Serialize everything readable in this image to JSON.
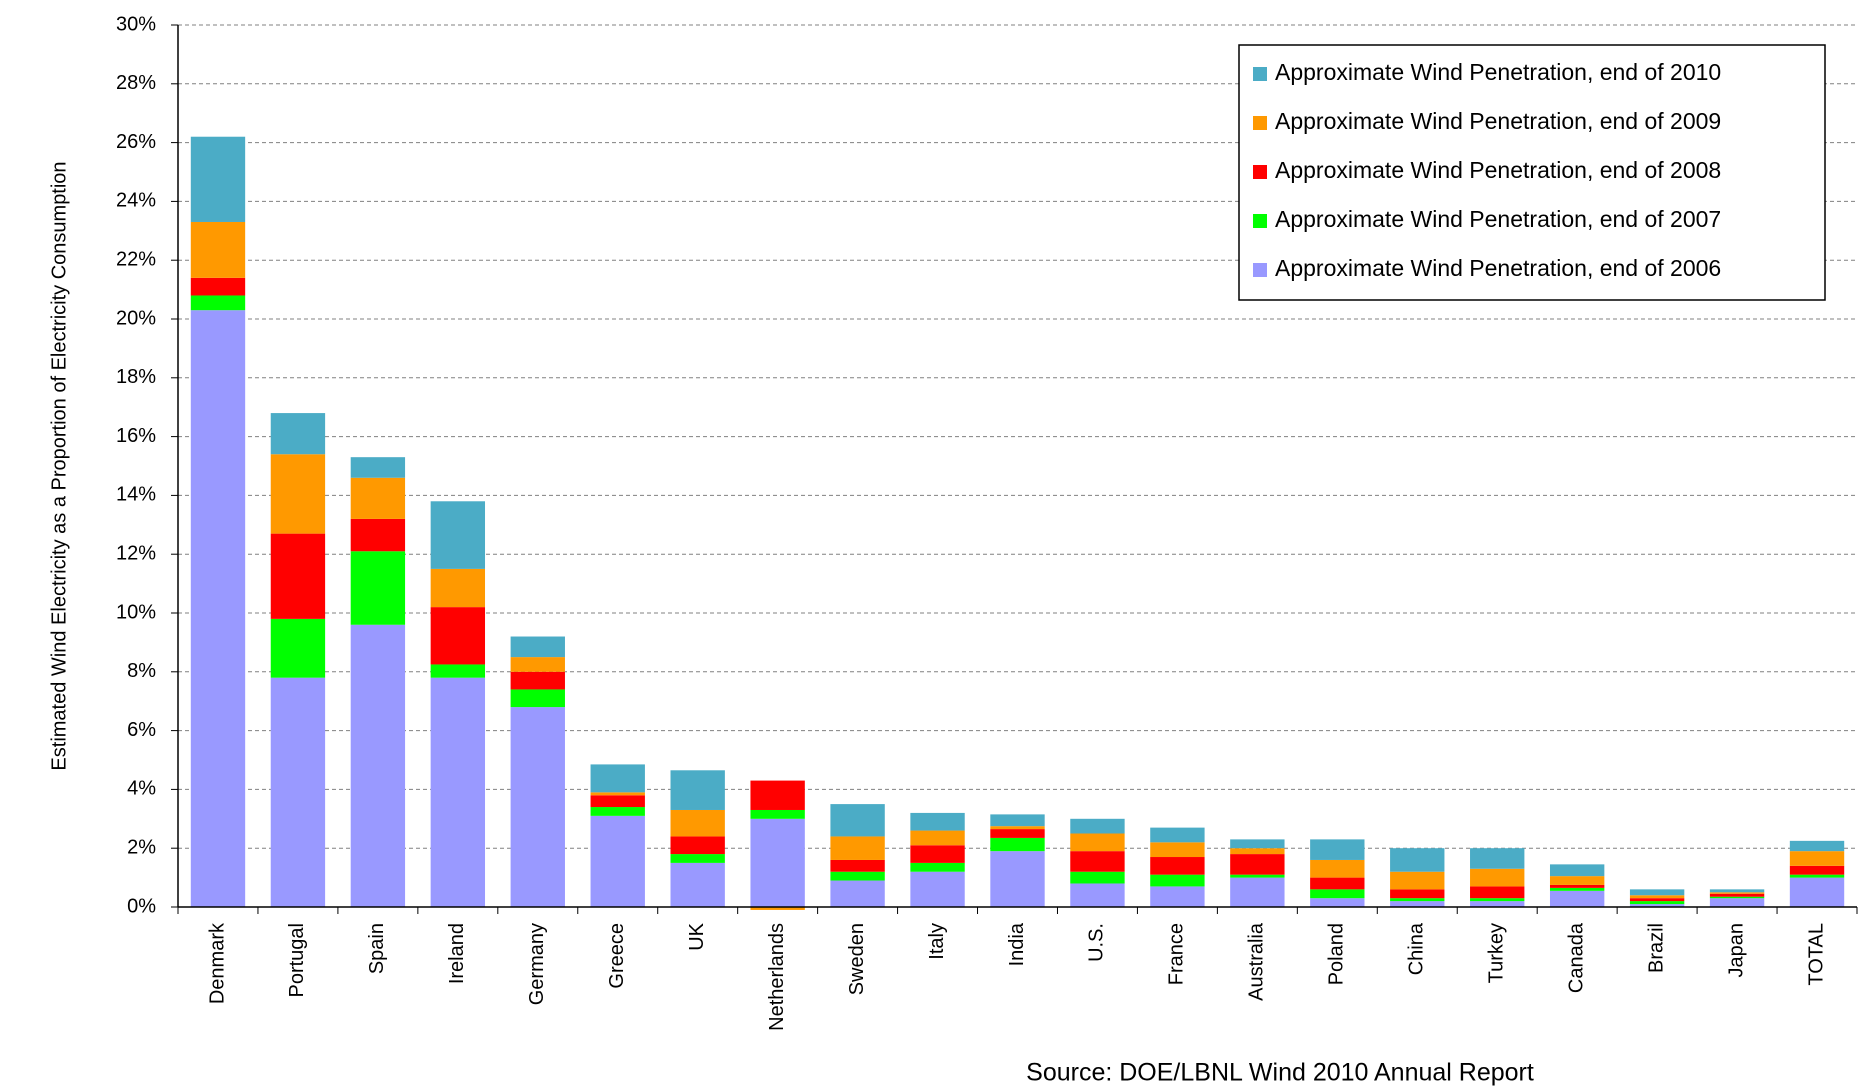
{
  "chart_data": {
    "type": "stacked_bar",
    "y_axis_label": "Estimated Wind Electricity as a Proportion of Electricity Consumption",
    "source": "Source: DOE/LBNL Wind 2010 Annual Report",
    "categories": [
      "Denmark",
      "Portugal",
      "Spain",
      "Ireland",
      "Germany",
      "Greece",
      "UK",
      "Netherlands",
      "Sweden",
      "Italy",
      "India",
      "U.S.",
      "France",
      "Australia",
      "Poland",
      "China",
      "Turkey",
      "Canada",
      "Brazil",
      "Japan",
      "TOTAL"
    ],
    "series": [
      {
        "name": "Approximate Wind Penetration, end of 2006",
        "color": "#9999ff",
        "values": [
          20.3,
          7.8,
          9.6,
          7.8,
          6.8,
          3.1,
          1.5,
          3.0,
          0.9,
          1.2,
          1.9,
          0.8,
          0.7,
          1.0,
          0.3,
          0.2,
          0.2,
          0.55,
          0.1,
          0.3,
          1.0
        ]
      },
      {
        "name": "Approximate Wind Penetration, end of 2007",
        "color": "#00ff00",
        "values": [
          0.5,
          2.0,
          2.5,
          0.45,
          0.6,
          0.3,
          0.3,
          0.3,
          0.3,
          0.3,
          0.45,
          0.4,
          0.4,
          0.1,
          0.3,
          0.1,
          0.1,
          0.1,
          0.1,
          0.05,
          0.1
        ]
      },
      {
        "name": "Approximate Wind Penetration, end of 2008",
        "color": "#ff0000",
        "values": [
          0.6,
          2.9,
          1.1,
          1.95,
          0.6,
          0.4,
          0.6,
          1.0,
          0.4,
          0.6,
          0.3,
          0.7,
          0.6,
          0.7,
          0.4,
          0.3,
          0.4,
          0.1,
          0.1,
          0.1,
          0.3
        ]
      },
      {
        "name": "Approximate Wind Penetration, end of 2009",
        "color": "#ff9900",
        "values": [
          1.9,
          2.7,
          1.4,
          1.3,
          0.5,
          0.1,
          0.9,
          -0.1,
          0.8,
          0.5,
          0.1,
          0.6,
          0.5,
          0.2,
          0.6,
          0.6,
          0.6,
          0.3,
          0.1,
          0.05,
          0.5
        ]
      },
      {
        "name": "Approximate Wind Penetration, end of 2010",
        "color": "#4bacc6",
        "values": [
          2.9,
          1.4,
          0.7,
          2.3,
          0.7,
          0.95,
          1.35,
          0,
          1.1,
          0.6,
          0.4,
          0.5,
          0.5,
          0.3,
          0.7,
          0.8,
          0.7,
          0.4,
          0.2,
          0.1,
          0.35
        ]
      }
    ],
    "ylim": [
      0,
      30
    ],
    "yticks": [
      {
        "value": 0,
        "label": "0%"
      },
      {
        "value": 2,
        "label": "2%"
      },
      {
        "value": 4,
        "label": "4%"
      },
      {
        "value": 6,
        "label": "6%"
      },
      {
        "value": 8,
        "label": "8%"
      },
      {
        "value": 10,
        "label": "10%"
      },
      {
        "value": 12,
        "label": "12%"
      },
      {
        "value": 14,
        "label": "14%"
      },
      {
        "value": 16,
        "label": "16%"
      },
      {
        "value": 18,
        "label": "18%"
      },
      {
        "value": 20,
        "label": "20%"
      },
      {
        "value": 22,
        "label": "22%"
      },
      {
        "value": 24,
        "label": "24%"
      },
      {
        "value": 26,
        "label": "26%"
      },
      {
        "value": 28,
        "label": "28%"
      },
      {
        "value": 30,
        "label": "30%"
      }
    ],
    "grid": true,
    "legend": "top-right"
  }
}
